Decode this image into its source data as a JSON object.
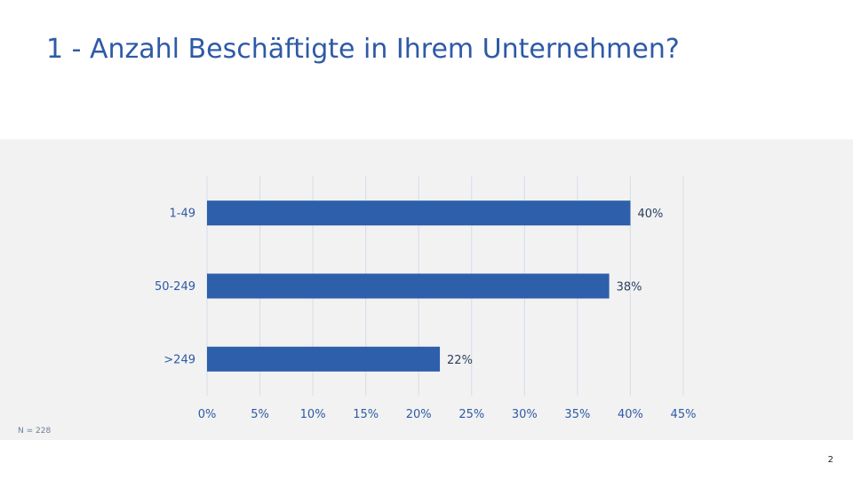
{
  "slide": {
    "title": "1 - Anzahl Beschäftigte in Ihrem Unternehmen?",
    "note": "N = 228",
    "page_number": "2"
  },
  "colors": {
    "title": "#2e5aa6",
    "bar": "#2e5fab",
    "axis_text": "#2e5aa6",
    "gridline": "#d4ddea",
    "panel_background": "#f2f2f2"
  },
  "chart_data": {
    "type": "bar",
    "orientation": "horizontal",
    "categories": [
      "1-49",
      "50-249",
      ">249"
    ],
    "values": [
      40,
      38,
      22
    ],
    "value_labels": [
      "40%",
      "38%",
      "22%"
    ],
    "xlim": [
      0,
      45
    ],
    "xticks": [
      0,
      5,
      10,
      15,
      20,
      25,
      30,
      35,
      40,
      45
    ],
    "xtick_labels": [
      "0%",
      "5%",
      "10%",
      "15%",
      "20%",
      "25%",
      "30%",
      "35%",
      "40%",
      "45%"
    ],
    "grid": true,
    "legend": "none"
  }
}
